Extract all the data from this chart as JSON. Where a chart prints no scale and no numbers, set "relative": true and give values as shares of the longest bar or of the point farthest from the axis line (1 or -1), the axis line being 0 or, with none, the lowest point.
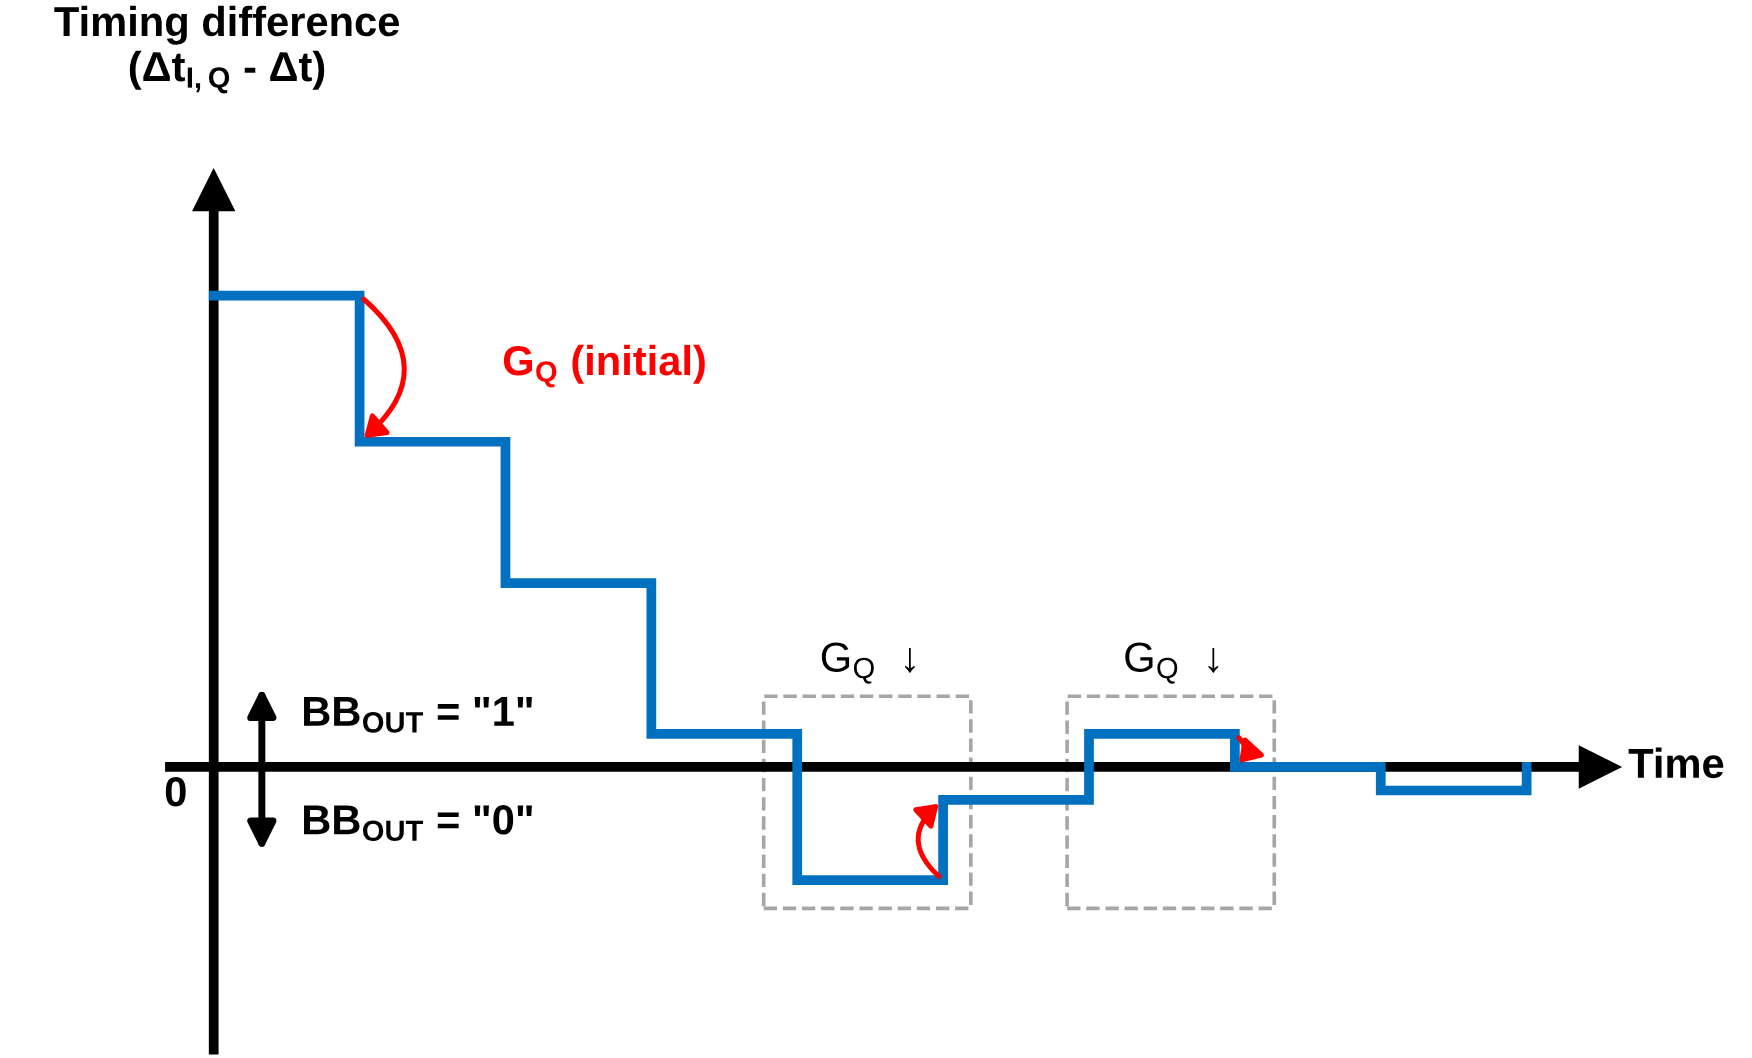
{
  "chart_data": {
    "type": "step",
    "relative": true,
    "ylabel": "Timing difference\n(Δt$_{I,Q}$ - Δt)",
    "xlabel": "Time",
    "categories": [
      null,
      null,
      null,
      null,
      null,
      null,
      null,
      null,
      null,
      null
    ],
    "series": [
      {
        "color": "#0070c0",
        "values": [
          1,
          0.69,
          0.39,
          0.07,
          -0.24,
          -0.07,
          0.07,
          0,
          -0.05,
          0
        ]
      }
    ],
    "annotations": [
      "G$_{Q}$ (initial)",
      "G$_{Q}$  ↓",
      "G$_{Q}$  ↓",
      "BB$_{OUT}$ = \"1\"",
      "BB$_{OUT}$ = \"0\"",
      "0"
    ]
  }
}
